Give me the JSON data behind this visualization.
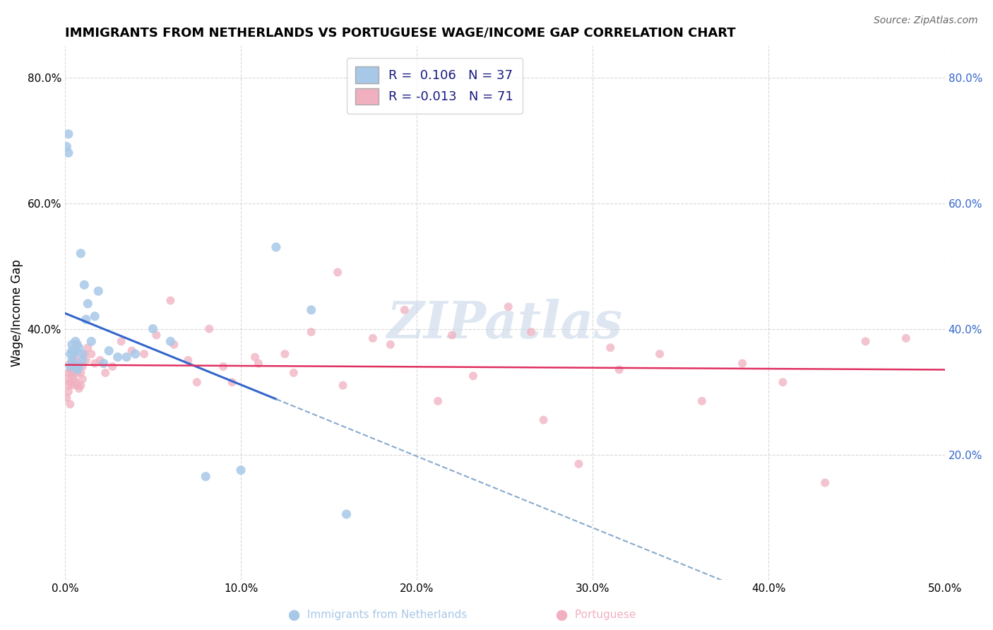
{
  "title": "IMMIGRANTS FROM NETHERLANDS VS PORTUGUESE WAGE/INCOME GAP CORRELATION CHART",
  "source_text": "Source: ZipAtlas.com",
  "ylabel": "Wage/Income Gap",
  "xlim": [
    0.0,
    0.5
  ],
  "ylim": [
    0.0,
    0.85
  ],
  "x_ticks": [
    0.0,
    0.1,
    0.2,
    0.3,
    0.4,
    0.5
  ],
  "x_tick_labels": [
    "0.0%",
    "10.0%",
    "20.0%",
    "30.0%",
    "40.0%",
    "50.0%"
  ],
  "y_ticks": [
    0.0,
    0.2,
    0.4,
    0.6,
    0.8
  ],
  "y_tick_labels_left": [
    "",
    "",
    "40.0%",
    "60.0%",
    "80.0%"
  ],
  "y_tick_labels_right": [
    "",
    "20.0%",
    "40.0%",
    "60.0%",
    "80.0%"
  ],
  "background_color": "#ffffff",
  "plot_bg_color": "#ffffff",
  "grid_color": "#d0d0d0",
  "color_netherlands": "#a8c8e8",
  "color_portuguese": "#f0b0c0",
  "line_color_netherlands": "#3366cc",
  "line_color_portuguese": "#e03060",
  "dashed_line_color": "#88aacc",
  "watermark_text": "ZIPatlas",
  "watermark_color": "#c8d8e8",
  "nl_x": [
    0.001,
    0.002,
    0.002,
    0.003,
    0.003,
    0.004,
    0.004,
    0.004,
    0.005,
    0.005,
    0.006,
    0.006,
    0.007,
    0.007,
    0.008,
    0.008,
    0.009,
    0.01,
    0.01,
    0.011,
    0.012,
    0.013,
    0.015,
    0.017,
    0.019,
    0.022,
    0.025,
    0.03,
    0.035,
    0.04,
    0.05,
    0.06,
    0.08,
    0.1,
    0.12,
    0.14,
    0.16
  ],
  "nl_y": [
    0.69,
    0.71,
    0.68,
    0.36,
    0.34,
    0.375,
    0.365,
    0.35,
    0.36,
    0.345,
    0.38,
    0.365,
    0.375,
    0.335,
    0.37,
    0.34,
    0.52,
    0.35,
    0.36,
    0.47,
    0.415,
    0.44,
    0.38,
    0.42,
    0.46,
    0.345,
    0.365,
    0.355,
    0.355,
    0.36,
    0.4,
    0.38,
    0.165,
    0.175,
    0.53,
    0.43,
    0.105
  ],
  "pt_x": [
    0.001,
    0.001,
    0.002,
    0.002,
    0.002,
    0.003,
    0.003,
    0.003,
    0.003,
    0.004,
    0.004,
    0.004,
    0.005,
    0.005,
    0.005,
    0.006,
    0.006,
    0.006,
    0.007,
    0.007,
    0.008,
    0.008,
    0.009,
    0.009,
    0.01,
    0.01,
    0.011,
    0.012,
    0.013,
    0.015,
    0.017,
    0.02,
    0.023,
    0.027,
    0.032,
    0.038,
    0.045,
    0.052,
    0.06,
    0.07,
    0.082,
    0.095,
    0.11,
    0.125,
    0.14,
    0.158,
    0.175,
    0.193,
    0.212,
    0.232,
    0.252,
    0.272,
    0.292,
    0.315,
    0.338,
    0.362,
    0.385,
    0.408,
    0.432,
    0.455,
    0.478,
    0.31,
    0.265,
    0.22,
    0.185,
    0.155,
    0.13,
    0.108,
    0.09,
    0.075,
    0.062
  ],
  "pt_y": [
    0.29,
    0.32,
    0.3,
    0.33,
    0.31,
    0.315,
    0.335,
    0.28,
    0.345,
    0.325,
    0.31,
    0.33,
    0.35,
    0.34,
    0.32,
    0.335,
    0.315,
    0.355,
    0.33,
    0.31,
    0.305,
    0.345,
    0.33,
    0.31,
    0.34,
    0.32,
    0.36,
    0.35,
    0.37,
    0.36,
    0.345,
    0.35,
    0.33,
    0.34,
    0.38,
    0.365,
    0.36,
    0.39,
    0.445,
    0.35,
    0.4,
    0.315,
    0.345,
    0.36,
    0.395,
    0.31,
    0.385,
    0.43,
    0.285,
    0.325,
    0.435,
    0.255,
    0.185,
    0.335,
    0.36,
    0.285,
    0.345,
    0.315,
    0.155,
    0.38,
    0.385,
    0.37,
    0.395,
    0.39,
    0.375,
    0.49,
    0.33,
    0.355,
    0.34,
    0.315,
    0.375
  ],
  "nl_size": 90,
  "pt_size": 75,
  "title_fontsize": 13,
  "tick_fontsize": 11,
  "label_fontsize": 12,
  "legend_fontsize": 13,
  "solid_line_x_end": 0.12
}
